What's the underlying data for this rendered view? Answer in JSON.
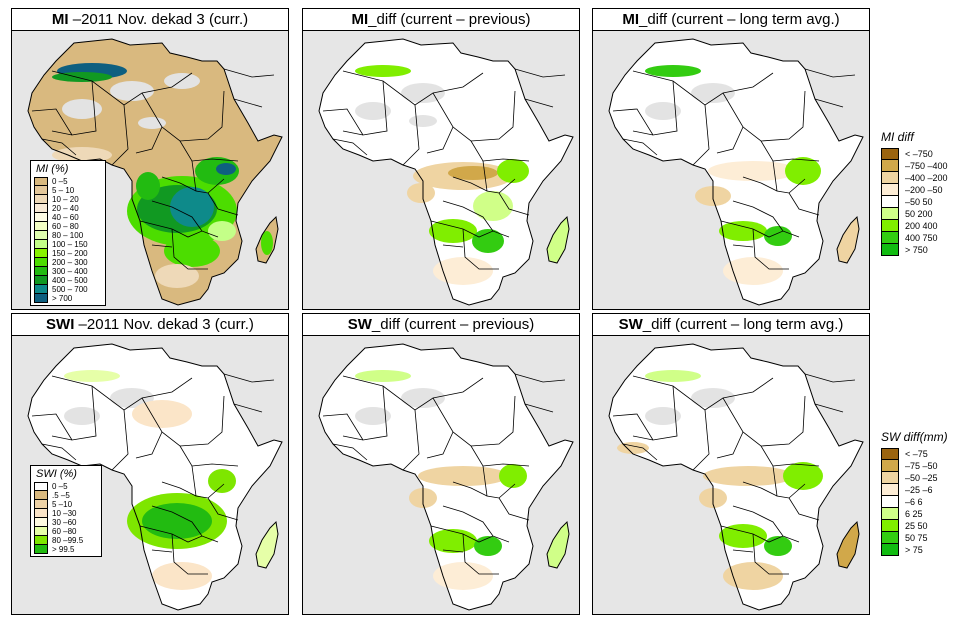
{
  "panels": [
    {
      "id": "mi-current",
      "title_bold": "MI",
      "title_rest": " –2011 Nov. dekad 3 (curr.)",
      "variant": "mi"
    },
    {
      "id": "mi-diff-prev",
      "title_bold": "MI",
      "title_rest": "_diff (current – previous)",
      "variant": "diffprev"
    },
    {
      "id": "mi-diff-lta",
      "title_bold": "MI",
      "title_rest": "_diff (current – long term avg.)",
      "variant": "difflta"
    },
    {
      "id": "swi-current",
      "title_bold": "SWI",
      "title_rest": " –2011 Nov. dekad 3 (curr.)",
      "variant": "swi"
    },
    {
      "id": "sw-diff-prev",
      "title_bold": "SW",
      "title_rest": "_diff (current – previous)",
      "variant": "swdiffprev"
    },
    {
      "id": "sw-diff-lta",
      "title_bold": "SW",
      "title_rest": "_diff (current – long term avg.)",
      "variant": "swdifflta"
    }
  ],
  "legends": {
    "mi": {
      "title": "MI (%)",
      "items": [
        {
          "label": "0 –5",
          "color": "#d9b97f"
        },
        {
          "label": "5 – 10",
          "color": "#e3c79a"
        },
        {
          "label": "10 – 20",
          "color": "#eed9b8"
        },
        {
          "label": "20 – 40",
          "color": "#f8ead7"
        },
        {
          "label": "40 – 60",
          "color": "#fffde6"
        },
        {
          "label": "60 – 80",
          "color": "#f3ffc4"
        },
        {
          "label": "80 – 100",
          "color": "#e0ffb0"
        },
        {
          "label": "100 – 150",
          "color": "#c4ff88"
        },
        {
          "label": "150 – 200",
          "color": "#88f200"
        },
        {
          "label": "200 – 300",
          "color": "#4cdd00"
        },
        {
          "label": "300 – 400",
          "color": "#22bb11"
        },
        {
          "label": "400 – 500",
          "color": "#119922"
        },
        {
          "label": "500 – 700",
          "color": "#0e8a8a"
        },
        {
          "label": "> 700",
          "color": "#0e5f80"
        }
      ]
    },
    "swi": {
      "title": "SWI (%)",
      "items": [
        {
          "label": "0 –5",
          "color": "#ffffff"
        },
        {
          "label": ".5 –5",
          "color": "#d9b97f"
        },
        {
          "label": "5 –10",
          "color": "#eed2a6"
        },
        {
          "label": "10 –30",
          "color": "#fbe5c8"
        },
        {
          "label": "30 –60",
          "color": "#fffbe2"
        },
        {
          "label": "60 –80",
          "color": "#e6ffa8"
        },
        {
          "label": "80 –99.5",
          "color": "#7ee600"
        },
        {
          "label": "> 99.5",
          "color": "#22bb11"
        }
      ]
    },
    "mi_diff": {
      "title": "MI diff",
      "items": [
        {
          "label": "< –750",
          "color": "#9a6410"
        },
        {
          "label": "–750 –400",
          "color": "#d1a84a"
        },
        {
          "label": "–400 –200",
          "color": "#efd4a2"
        },
        {
          "label": "–200  –50",
          "color": "#fdedd6"
        },
        {
          "label": "–50  50",
          "color": "#ffffff"
        },
        {
          "label": "50  200",
          "color": "#d0ff88"
        },
        {
          "label": "200  400",
          "color": "#80ee00"
        },
        {
          "label": "400  750",
          "color": "#33cc11"
        },
        {
          "label": "> 750",
          "color": "#11bb11"
        }
      ]
    },
    "sw_diff": {
      "title": "SW diff(mm)",
      "items": [
        {
          "label": "< –75",
          "color": "#9a6410"
        },
        {
          "label": "–75 –50",
          "color": "#d1a84a"
        },
        {
          "label": "–50 –25",
          "color": "#efd4a2"
        },
        {
          "label": "–25  –6",
          "color": "#fdedd6"
        },
        {
          "label": "–6  6",
          "color": "#ffffff"
        },
        {
          "label": "6  25",
          "color": "#d0ff88"
        },
        {
          "label": "25  50",
          "color": "#80ee00"
        },
        {
          "label": "50  75",
          "color": "#33cc11"
        },
        {
          "label": "> 75",
          "color": "#11bb11"
        }
      ]
    }
  },
  "colors": {
    "sea": "#e6e6e6",
    "no_data": "#e3e3e3",
    "border": "#000000"
  }
}
